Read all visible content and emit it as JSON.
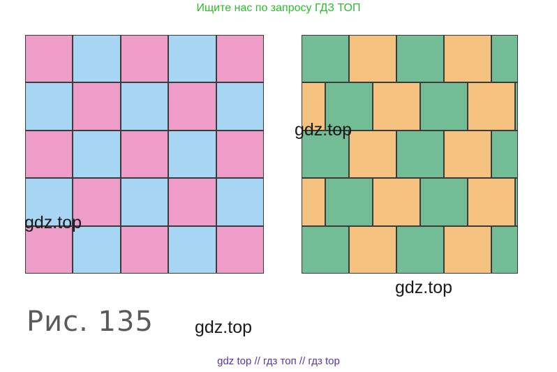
{
  "header": {
    "promo_text": "Ищите нас по запросу ГДЗ ТОП"
  },
  "figure": {
    "label": "Рис.  135",
    "left_pattern": {
      "rows": 5,
      "cols": 5,
      "colors": [
        "#ee9cc8",
        "#a7d6f4"
      ]
    },
    "right_pattern": {
      "rows": 5,
      "colors": [
        "#f5c27f",
        "#72bd96"
      ]
    }
  },
  "watermarks": [
    "gdz.top",
    "gdz.top",
    "gdz.top",
    "gdz.top"
  ],
  "footer": {
    "links_text": "gdz top  //  гдз топ  //  гдз top"
  }
}
